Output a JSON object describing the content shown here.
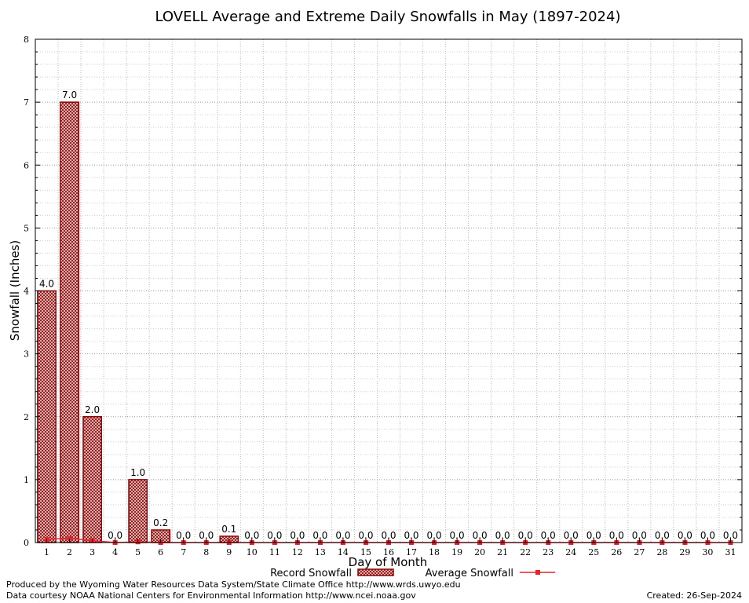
{
  "chart_data": {
    "type": "bar",
    "title": "LOVELL Average and Extreme Daily Snowfalls in May (1897-2024)",
    "xlabel": "Day of Month",
    "ylabel": "Snowfall (Inches)",
    "ylim": [
      0,
      8
    ],
    "yticks": [
      "0",
      "1",
      "2",
      "3",
      "4",
      "5",
      "6",
      "7",
      "8"
    ],
    "categories": [
      "1",
      "2",
      "3",
      "4",
      "5",
      "6",
      "7",
      "8",
      "9",
      "10",
      "11",
      "12",
      "13",
      "14",
      "15",
      "16",
      "17",
      "18",
      "19",
      "20",
      "21",
      "22",
      "23",
      "24",
      "25",
      "26",
      "27",
      "28",
      "29",
      "30",
      "31"
    ],
    "series": [
      {
        "name": "Record Snowfall",
        "type": "bar",
        "color": "#8b0000",
        "values": [
          4.0,
          7.0,
          2.0,
          0.0,
          1.0,
          0.2,
          0.0,
          0.0,
          0.1,
          0.0,
          0.0,
          0.0,
          0.0,
          0.0,
          0.0,
          0.0,
          0.0,
          0.0,
          0.0,
          0.0,
          0.0,
          0.0,
          0.0,
          0.0,
          0.0,
          0.0,
          0.0,
          0.0,
          0.0,
          0.0,
          0.0
        ],
        "labels": [
          "4.0",
          "7.0",
          "2.0",
          "0.0",
          "1.0",
          "0.2",
          "0.0",
          "0.0",
          "0.1",
          "0.0",
          "0.0",
          "0.0",
          "0.0",
          "0.0",
          "0.0",
          "0.0",
          "0.0",
          "0.0",
          "0.0",
          "0.0",
          "0.0",
          "0.0",
          "0.0",
          "0.0",
          "0.0",
          "0.0",
          "0.0",
          "0.0",
          "0.0",
          "0.0",
          "0.0"
        ]
      },
      {
        "name": "Average Snowfall",
        "type": "line",
        "color": "#e8222a",
        "values": [
          0.05,
          0.07,
          0.03,
          0.0,
          0.01,
          0.0,
          0.0,
          0.0,
          0.0,
          0.0,
          0.0,
          0.0,
          0.0,
          0.0,
          0.0,
          0.0,
          0.0,
          0.0,
          0.0,
          0.0,
          0.0,
          0.0,
          0.0,
          0.0,
          0.0,
          0.0,
          0.0,
          0.0,
          0.0,
          0.0,
          0.0
        ]
      }
    ],
    "grid": true,
    "legend": "bottom"
  },
  "footer": {
    "produced_by": "Produced by the Wyoming Water Resources Data System/State Climate Office http://www.wrds.uwyo.edu",
    "courtesy": "Data courtesy NOAA National Centers for Environmental Information http://www.ncei.noaa.gov",
    "created": "Created: 26-Sep-2024"
  }
}
